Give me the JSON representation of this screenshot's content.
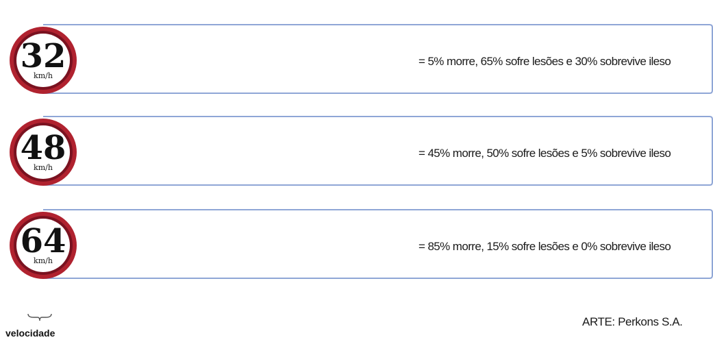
{
  "chart_data": {
    "type": "pictogram",
    "unit_count": 10,
    "axis_label": "velocidade",
    "colors": {
      "died": "#111111",
      "injured": "#c8203a",
      "unharmed": "#1f3a8a"
    },
    "rows": [
      {
        "speed": "32",
        "unit": "km/h",
        "died": 5,
        "injured": 65,
        "unharmed": 30,
        "label": "= 5% morre, 65% sofre lesões e 30% sobrevive ileso"
      },
      {
        "speed": "48",
        "unit": "km/h",
        "died": 45,
        "injured": 50,
        "unharmed": 5,
        "label": "= 45% morre, 50% sofre lesões e 5% sobrevive ileso"
      },
      {
        "speed": "64",
        "unit": "km/h",
        "died": 85,
        "injured": 15,
        "unharmed": 0,
        "label": "= 85% morre, 15% sofre lesões e 0% sobrevive ileso"
      }
    ]
  },
  "credit": "ARTE: Perkons S.A."
}
